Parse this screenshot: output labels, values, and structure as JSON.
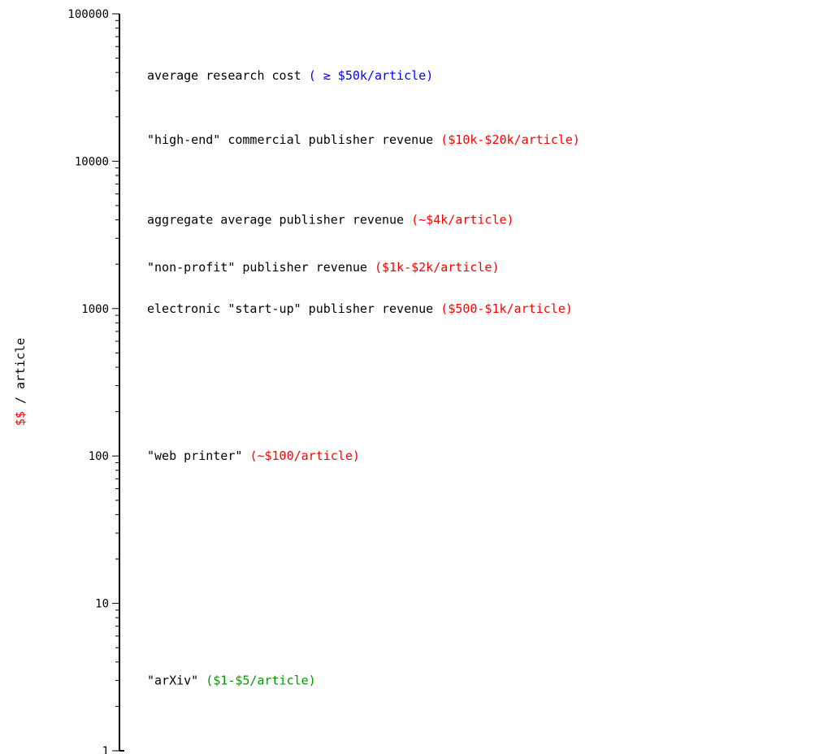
{
  "chart_data": {
    "type": "scatter",
    "ylabel_parts": [
      "$$",
      " / article"
    ],
    "y_scale": "log",
    "ylim": [
      1,
      100000
    ],
    "y_ticks": [
      "100000",
      "10000",
      "1000",
      "100",
      "10",
      "1"
    ],
    "grid": false,
    "colors": {
      "axis": "#000000",
      "text": "#000000",
      "blue": "#0000ff",
      "red": "#ff0000",
      "green": "#009900"
    },
    "annotations": [
      {
        "y": 38000,
        "text": "average research cost",
        "range_text": "( ≳ $50k/article)",
        "range_color": "blue"
      },
      {
        "y": 14000,
        "text": "\"high-end\" commercial publisher revenue",
        "range_text": "($10k-$20k/article)",
        "range_color": "red"
      },
      {
        "y": 4000,
        "text": "aggregate average publisher revenue",
        "range_text": "(~$4k/article)",
        "range_color": "red"
      },
      {
        "y": 1900,
        "text": "\"non-profit\" publisher revenue",
        "range_text": "($1k-$2k/article)",
        "range_color": "red"
      },
      {
        "y": 1000,
        "text": "electronic \"start-up\" publisher revenue",
        "range_text": "($500-$1k/article)",
        "range_color": "red"
      },
      {
        "y": 100,
        "text": "\"web printer\"",
        "range_text": "(~$100/article)",
        "range_color": "red"
      },
      {
        "y": 3,
        "text": "\"arXiv\"",
        "range_text": "($1-$5/article)",
        "range_color": "green"
      }
    ]
  }
}
